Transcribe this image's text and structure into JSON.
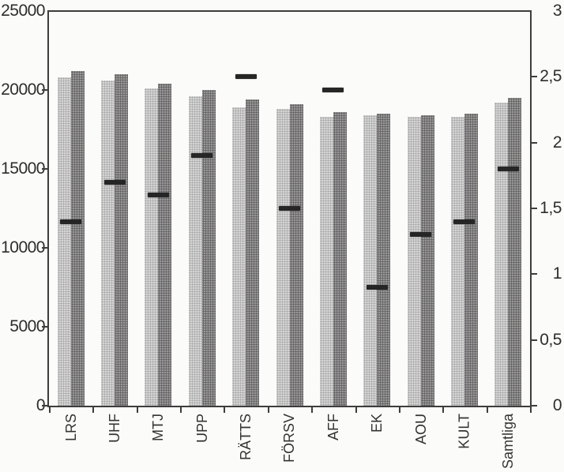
{
  "chart_data": {
    "type": "bar",
    "title": "",
    "categories": [
      "LRS",
      "UHF",
      "MTJ",
      "UPP",
      "RÄTTS",
      "FÖRSV",
      "AFF",
      "EK",
      "AOU",
      "KULT",
      "Samtliga"
    ],
    "series": [
      {
        "name": "light_bars",
        "axis": "left",
        "kind": "bar",
        "color": "#e2e2e2",
        "values": [
          20800,
          20600,
          20100,
          19600,
          18900,
          18800,
          18300,
          18400,
          18300,
          18300,
          19200
        ]
      },
      {
        "name": "dark_bars",
        "axis": "left",
        "kind": "bar",
        "color": "#b0aeae",
        "values": [
          21200,
          21000,
          20400,
          20000,
          19400,
          19100,
          18600,
          18500,
          18400,
          18500,
          19500
        ]
      },
      {
        "name": "dash_markers",
        "axis": "right",
        "kind": "dash",
        "color": "#262626",
        "values": [
          1.4,
          1.7,
          1.6,
          1.9,
          2.5,
          1.5,
          2.4,
          0.9,
          1.3,
          1.4,
          1.8
        ]
      }
    ],
    "left_axis": {
      "min": 0,
      "max": 25000,
      "tick_labels": [
        "25000",
        "20000",
        "15000",
        "10000",
        "5000",
        "0"
      ],
      "tick_values": [
        25000,
        20000,
        15000,
        10000,
        5000,
        0
      ]
    },
    "right_axis": {
      "min": 0,
      "max": 3,
      "tick_labels": [
        "3",
        "2,5",
        "2",
        "1,5",
        "1",
        "0,5",
        "0"
      ],
      "tick_values": [
        3,
        2.5,
        2,
        1.5,
        1,
        0.5,
        0
      ]
    },
    "grid": false,
    "legend": null,
    "style": {
      "axis_color": "#3d3d3d",
      "label_color": "#2d2d2d",
      "background": "#fbfbf9"
    }
  }
}
